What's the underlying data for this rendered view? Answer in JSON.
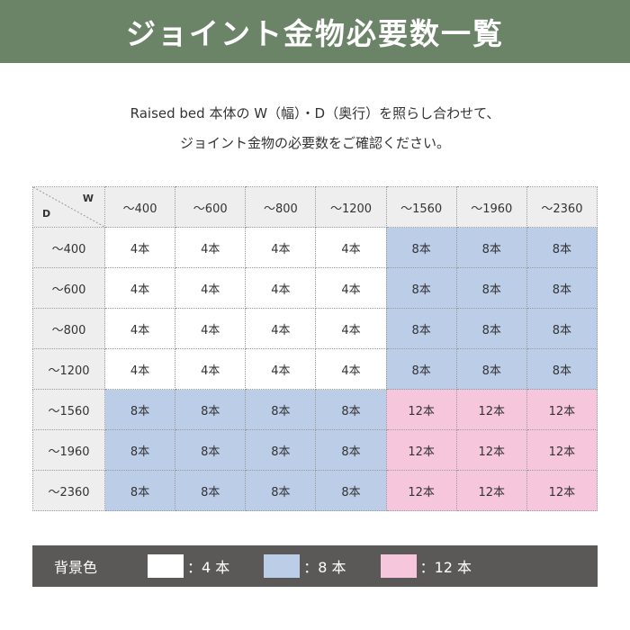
{
  "header": {
    "title": "ジョイント金物必要数一覧"
  },
  "intro": {
    "line1": "Raised bed 本体の W（幅）・D（奥行）を照らし合わせて、",
    "line2": "ジョイント金物の必要数をご確認ください。"
  },
  "table": {
    "corner_w": "W",
    "corner_d": "D",
    "columns": [
      "～400",
      "～600",
      "～800",
      "～1200",
      "～1560",
      "～1960",
      "～2360"
    ],
    "rows": [
      {
        "label": "～400",
        "cells": [
          "4本",
          "4本",
          "4本",
          "4本",
          "8本",
          "8本",
          "8本"
        ],
        "levels": [
          4,
          4,
          4,
          4,
          8,
          8,
          8
        ]
      },
      {
        "label": "～600",
        "cells": [
          "4本",
          "4本",
          "4本",
          "4本",
          "8本",
          "8本",
          "8本"
        ],
        "levels": [
          4,
          4,
          4,
          4,
          8,
          8,
          8
        ]
      },
      {
        "label": "～800",
        "cells": [
          "4本",
          "4本",
          "4本",
          "4本",
          "8本",
          "8本",
          "8本"
        ],
        "levels": [
          4,
          4,
          4,
          4,
          8,
          8,
          8
        ]
      },
      {
        "label": "～1200",
        "cells": [
          "4本",
          "4本",
          "4本",
          "4本",
          "8本",
          "8本",
          "8本"
        ],
        "levels": [
          4,
          4,
          4,
          4,
          8,
          8,
          8
        ]
      },
      {
        "label": "～1560",
        "cells": [
          "8本",
          "8本",
          "8本",
          "8本",
          "12本",
          "12本",
          "12本"
        ],
        "levels": [
          8,
          8,
          8,
          8,
          12,
          12,
          12
        ]
      },
      {
        "label": "～1960",
        "cells": [
          "8本",
          "8本",
          "8本",
          "8本",
          "12本",
          "12本",
          "12本"
        ],
        "levels": [
          8,
          8,
          8,
          8,
          12,
          12,
          12
        ]
      },
      {
        "label": "～2360",
        "cells": [
          "8本",
          "8本",
          "8本",
          "8本",
          "12本",
          "12本",
          "12本"
        ],
        "levels": [
          8,
          8,
          8,
          8,
          12,
          12,
          12
        ]
      }
    ]
  },
  "legend": {
    "title": "背景色",
    "items": [
      {
        "label": "：4 本",
        "color": "#ffffff"
      },
      {
        "label": "：8 本",
        "color": "#bccde8"
      },
      {
        "label": "：12 本",
        "color": "#f6c7dc"
      }
    ]
  },
  "colors": {
    "header_bg": "#6b8468",
    "legend_bg": "#5b5958",
    "cell_4": "#ffffff",
    "cell_8": "#bccde8",
    "cell_12": "#f6c7dc",
    "header_cell_bg": "#eeeeee"
  }
}
